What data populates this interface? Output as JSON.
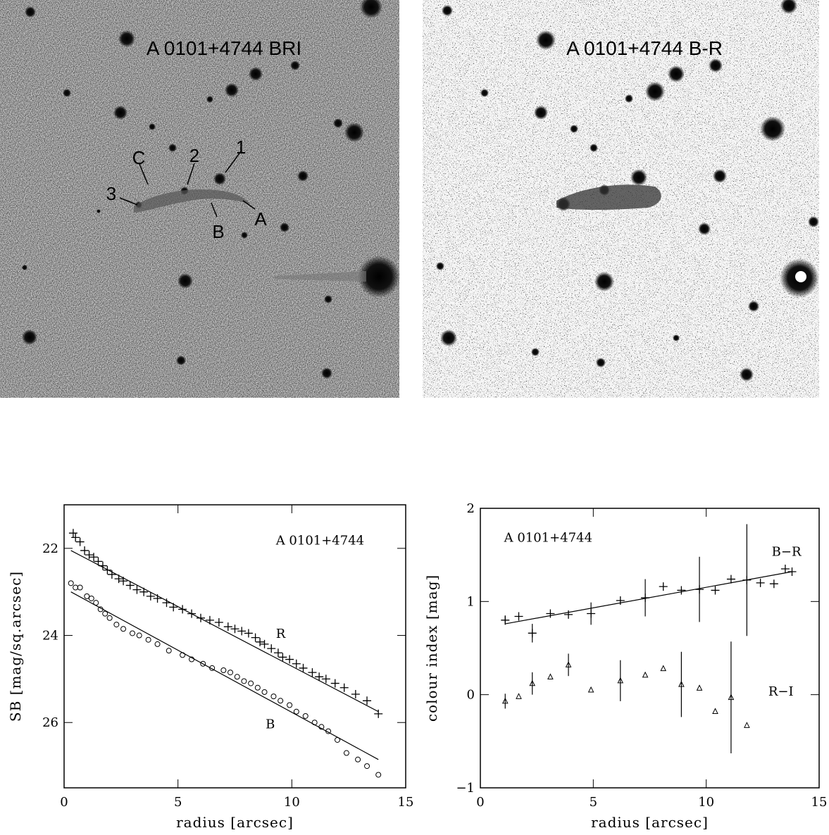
{
  "images": [
    {
      "title": "A 0101+4744 BRI",
      "labels": [
        "C",
        "2",
        "1",
        "3",
        "B",
        "A"
      ]
    },
    {
      "title": "A 0101+4744 B-R"
    }
  ],
  "chart_data": [
    {
      "type": "scatter",
      "xlabel": "radius [arcsec]",
      "ylabel": "SB [mag/sq.arcsec]",
      "xlim": [
        0,
        15
      ],
      "xticks": [
        0,
        5,
        10,
        15
      ],
      "ylim": [
        21,
        27.5
      ],
      "yticks": [
        22,
        24,
        26
      ],
      "invert_y": true,
      "annotations": [
        "A 0101+4744",
        "R",
        "B"
      ],
      "series": [
        {
          "marker": "plus",
          "color": "#000000",
          "x": [
            0.4,
            0.5,
            0.7,
            0.9,
            1.1,
            1.3,
            1.5,
            1.7,
            1.9,
            2.1,
            2.4,
            2.6,
            2.9,
            3.2,
            3.5,
            3.8,
            4.1,
            4.5,
            4.8,
            5.2,
            5.6,
            6.0,
            6.4,
            6.8,
            7.2,
            7.5,
            7.8,
            8.1,
            8.4,
            8.6,
            8.8,
            9.1,
            9.4,
            9.6,
            9.9,
            10.2,
            10.5,
            10.9,
            11.2,
            11.5,
            11.9,
            12.3,
            12.8,
            13.3,
            13.8
          ],
          "values": [
            21.65,
            21.75,
            21.85,
            22.05,
            22.15,
            22.2,
            22.3,
            22.4,
            22.5,
            22.6,
            22.7,
            22.75,
            22.85,
            22.95,
            23.0,
            23.1,
            23.15,
            23.25,
            23.35,
            23.4,
            23.5,
            23.6,
            23.65,
            23.7,
            23.8,
            23.85,
            23.9,
            23.95,
            24.05,
            24.15,
            24.2,
            24.3,
            24.4,
            24.5,
            24.55,
            24.65,
            24.75,
            24.85,
            24.95,
            25.0,
            25.1,
            25.2,
            25.35,
            25.5,
            25.8
          ]
        },
        {
          "marker": "circle",
          "color": "#000000",
          "x": [
            0.3,
            0.5,
            0.7,
            1.0,
            1.2,
            1.4,
            1.6,
            1.8,
            2.0,
            2.3,
            2.6,
            3.0,
            3.3,
            3.7,
            4.1,
            4.6,
            5.2,
            5.6,
            6.1,
            6.5,
            7.0,
            7.3,
            7.6,
            7.9,
            8.2,
            8.5,
            8.8,
            9.2,
            9.5,
            9.9,
            10.2,
            10.6,
            11.0,
            11.3,
            11.6,
            12.0,
            12.4,
            12.9,
            13.3,
            13.8
          ],
          "values": [
            22.8,
            22.9,
            22.9,
            23.1,
            23.15,
            23.25,
            23.4,
            23.5,
            23.6,
            23.75,
            23.85,
            23.95,
            24.0,
            24.1,
            24.2,
            24.35,
            24.45,
            24.55,
            24.65,
            24.75,
            24.8,
            24.85,
            24.95,
            25.05,
            25.1,
            25.2,
            25.3,
            25.4,
            25.5,
            25.6,
            25.75,
            25.85,
            26.0,
            26.1,
            26.2,
            26.4,
            26.7,
            26.85,
            27.0,
            27.2
          ]
        }
      ],
      "fits": [
        {
          "x": [
            0.3,
            13.8
          ],
          "values": [
            22.05,
            25.75
          ]
        },
        {
          "x": [
            0.3,
            13.8
          ],
          "values": [
            23.0,
            26.85
          ]
        }
      ]
    },
    {
      "type": "scatter",
      "xlabel": "radius [arcsec]",
      "ylabel": "colour index [mag]",
      "xlim": [
        0,
        15
      ],
      "xticks": [
        0,
        5,
        10,
        15
      ],
      "ylim": [
        -1,
        2
      ],
      "yticks": [
        {
          "value": -1,
          "label": "−1"
        },
        0,
        1,
        2
      ],
      "annotations": [
        "A 0101+4744",
        "B−R",
        "R−I"
      ],
      "series": [
        {
          "marker": "plus",
          "color": "#000000",
          "x": [
            1.1,
            1.7,
            2.3,
            3.1,
            3.9,
            4.9,
            6.2,
            7.3,
            8.1,
            8.9,
            9.7,
            10.4,
            11.1,
            11.8,
            12.4,
            13.0,
            13.5,
            13.8
          ],
          "values": [
            0.8,
            0.84,
            0.66,
            0.87,
            0.86,
            0.87,
            1.01,
            1.04,
            1.16,
            1.12,
            1.13,
            1.12,
            1.24,
            1.23,
            1.2,
            1.19,
            1.35,
            1.32
          ],
          "errors": [
            0.05,
            null,
            0.1,
            null,
            null,
            0.12,
            null,
            0.2,
            null,
            null,
            0.35,
            null,
            null,
            0.6,
            null,
            null,
            null,
            null
          ]
        },
        {
          "marker": "triangle",
          "color": "#000000",
          "x": [
            1.1,
            1.7,
            2.3,
            3.1,
            3.9,
            4.9,
            6.2,
            7.3,
            8.1,
            8.9,
            9.7,
            10.4,
            11.1,
            11.8
          ],
          "values": [
            -0.07,
            -0.02,
            0.12,
            0.19,
            0.32,
            0.05,
            0.15,
            0.21,
            0.28,
            0.11,
            0.07,
            -0.18,
            -0.03,
            -0.33
          ],
          "errors": [
            0.08,
            null,
            0.12,
            null,
            0.12,
            null,
            0.22,
            null,
            null,
            0.35,
            null,
            null,
            0.6,
            null
          ]
        }
      ],
      "fits": [
        {
          "x": [
            1.1,
            13.8
          ],
          "values": [
            0.76,
            1.32
          ]
        }
      ]
    }
  ]
}
